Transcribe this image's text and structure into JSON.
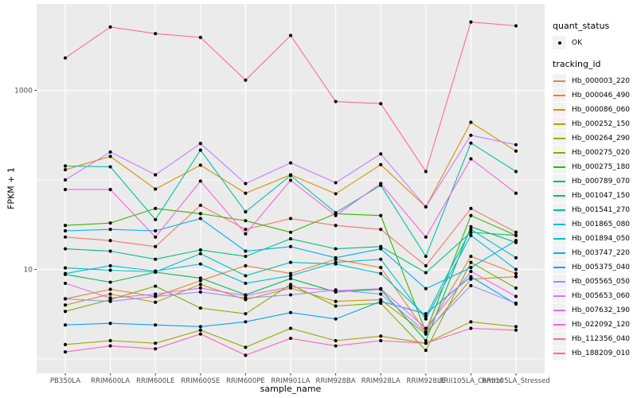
{
  "chart_data": {
    "type": "line",
    "title": "",
    "xlabel": "sample_name",
    "ylabel": "FPKM + 1",
    "y_scale": "log10",
    "y_axis_ticks": [
      {
        "label": "1000",
        "value": 1000
      },
      {
        "label": "10",
        "value": 10
      }
    ],
    "y_minor_grid_values": [
      100,
      1
    ],
    "ylim": [
      0.7,
      9000
    ],
    "grid": true,
    "legend_position": "right",
    "panel_bg": "#EBEBEB",
    "grid_color": "#FFFFFF",
    "point_color": "#000000",
    "axis_text_color": "#4D4D4D",
    "categories": [
      "PB350LA",
      "RRIM600LA",
      "RRIM600LE",
      "RRIM600SE",
      "RRIM600PE",
      "RRIM901LA",
      "RRIM928BA",
      "RRIM928LA",
      "RRIM928LE",
      "RRII105LA_Control",
      "RRII105LA_Stressed"
    ],
    "series": [
      {
        "name": "Hb_000003_220",
        "color": "#F8766D",
        "values": [
          23,
          21,
          18,
          52,
          28,
          37,
          31,
          28,
          11,
          48,
          26
        ]
      },
      {
        "name": "Hb_000046_490",
        "color": "#EA8331",
        "values": [
          4.7,
          6.0,
          5.0,
          7.5,
          11,
          9.0,
          13,
          10.5,
          2.0,
          14,
          9.0
        ]
      },
      {
        "name": "Hb_000086_060",
        "color": "#D89000",
        "values": [
          130,
          183,
          79,
          146,
          71,
          114,
          70,
          148,
          50,
          440,
          210
        ]
      },
      {
        "name": "Hb_000252_150",
        "color": "#C09B00",
        "values": [
          4.0,
          5.3,
          4.3,
          6.8,
          4.6,
          6.2,
          4.4,
          4.6,
          1.9,
          7.8,
          8.3
        ]
      },
      {
        "name": "Hb_000264_290",
        "color": "#A3A500",
        "values": [
          1.45,
          1.6,
          1.5,
          2.1,
          1.35,
          2.2,
          1.6,
          1.8,
          1.5,
          2.6,
          2.3
        ]
      },
      {
        "name": "Hb_000275_020",
        "color": "#7CAE00",
        "values": [
          3.4,
          4.6,
          6.5,
          3.7,
          3.2,
          6.8,
          3.9,
          4.2,
          1.25,
          12,
          6.2
        ]
      },
      {
        "name": "Hb_000275_180",
        "color": "#39B600",
        "values": [
          31,
          33,
          48,
          42,
          35,
          26,
          42,
          40,
          2.0,
          40,
          24
        ]
      },
      {
        "name": "Hb_000789_070",
        "color": "#00BB4E",
        "values": [
          8.8,
          7.2,
          9.3,
          8.0,
          5.2,
          7.9,
          5.6,
          6.0,
          1.6,
          30,
          20
        ]
      },
      {
        "name": "Hb_001047_150",
        "color": "#00BF7D",
        "values": [
          17,
          16,
          13,
          16.5,
          14,
          22,
          17,
          18,
          9.2,
          26,
          24
        ]
      },
      {
        "name": "Hb_001541_270",
        "color": "#00C1A3",
        "values": [
          143,
          140,
          36,
          215,
          44,
          112,
          43,
          87,
          14,
          258,
          124
        ]
      },
      {
        "name": "Hb_001865_080",
        "color": "#00BFC4",
        "values": [
          10.4,
          9.8,
          9.4,
          15,
          8.5,
          12,
          11.5,
          9.0,
          3.0,
          28,
          13.5
        ]
      },
      {
        "name": "Hb_001894_050",
        "color": "#00BBDA",
        "values": [
          9.0,
          11,
          9.6,
          11.5,
          7.0,
          8.5,
          12,
          13,
          2.8,
          24,
          10
        ]
      },
      {
        "name": "Hb_003747_220",
        "color": "#00B0F6",
        "values": [
          27,
          28,
          27,
          37,
          16,
          18,
          13.5,
          17,
          6.1,
          10.5,
          21
        ]
      },
      {
        "name": "Hb_005375_040",
        "color": "#00A5FF",
        "values": [
          2.4,
          2.5,
          2.4,
          2.3,
          2.6,
          3.3,
          2.8,
          4.4,
          3.2,
          8.3,
          4.1
        ]
      },
      {
        "name": "Hb_005565_050",
        "color": "#9590FF",
        "values": [
          4.7,
          4.4,
          5.0,
          5.6,
          4.8,
          5.2,
          5.9,
          5.3,
          2.0,
          6.6,
          4.2
        ]
      },
      {
        "name": "Hb_005653_060",
        "color": "#C77CFF",
        "values": [
          100,
          205,
          114,
          255,
          91,
          155,
          93,
          195,
          50,
          315,
          247
        ]
      },
      {
        "name": "Hb_007632_190",
        "color": "#E76BF3",
        "values": [
          7.0,
          4.8,
          5.3,
          6.2,
          5.1,
          6.4,
          5.8,
          6.1,
          2.2,
          9.5,
          5.0
        ]
      },
      {
        "name": "Hb_022092_120",
        "color": "#FA62DB",
        "values": [
          78,
          78,
          23,
          97,
          25,
          99,
          40,
          91,
          23,
          172,
          71
        ]
      },
      {
        "name": "Hb_112356_040",
        "color": "#FF62BC",
        "values": [
          1.2,
          1.4,
          1.3,
          1.9,
          1.1,
          1.7,
          1.4,
          1.6,
          1.5,
          2.2,
          2.1
        ]
      },
      {
        "name": "Hb_188209_010",
        "color": "#FF6A98",
        "values": [
          2300,
          5100,
          4300,
          3900,
          1300,
          4100,
          750,
          710,
          124,
          5800,
          5250
        ]
      }
    ],
    "legend": {
      "quant_status_title": "quant_status",
      "ok_label": "OK",
      "tracking_id_title": "tracking_id"
    }
  }
}
